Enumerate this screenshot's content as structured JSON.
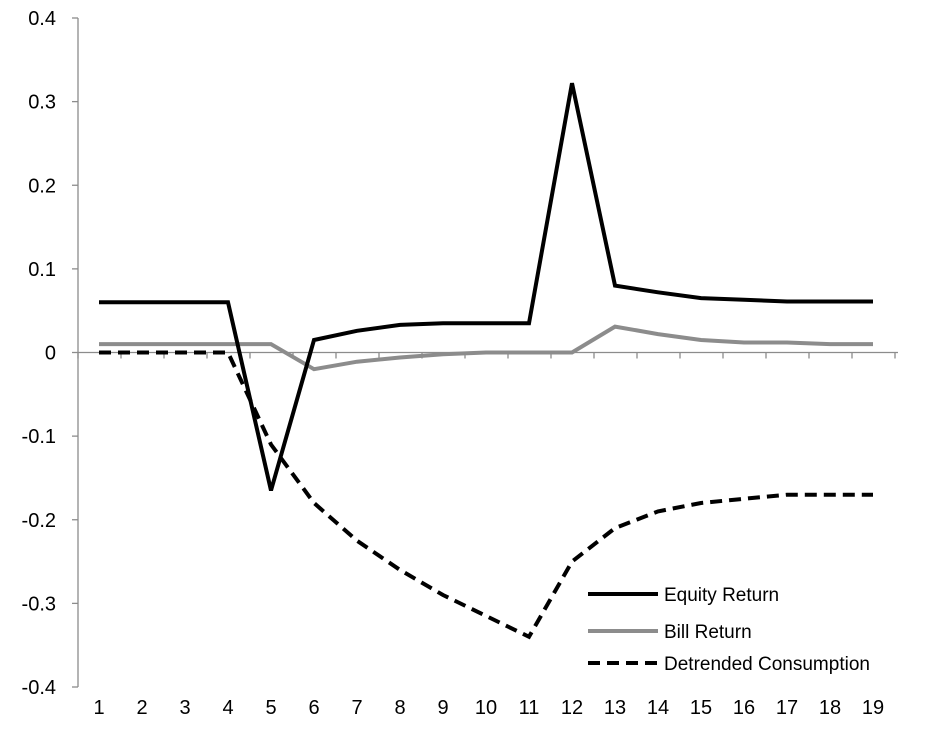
{
  "chart_data": {
    "type": "line",
    "title": "",
    "xlabel": "",
    "ylabel": "",
    "categories": [
      "1",
      "2",
      "3",
      "4",
      "5",
      "6",
      "7",
      "8",
      "9",
      "10",
      "11",
      "12",
      "13",
      "14",
      "15",
      "16",
      "17",
      "18",
      "19"
    ],
    "ylim": [
      -0.4,
      0.4
    ],
    "yticks": [
      "0.4",
      "0.3",
      "0.2",
      "0.1",
      "0",
      "-0.1",
      "-0.2",
      "-0.3",
      "-0.4"
    ],
    "grid": false,
    "legend_position": "bottom-right",
    "series": [
      {
        "name": "Equity Return",
        "color": "#000000",
        "style": "solid",
        "values": [
          0.06,
          0.06,
          0.06,
          0.06,
          -0.165,
          0.015,
          0.026,
          0.033,
          0.035,
          0.035,
          0.035,
          0.322,
          0.08,
          0.072,
          0.065,
          0.063,
          0.061,
          0.061,
          0.061
        ]
      },
      {
        "name": "Bill Return",
        "color": "#8c8c8c",
        "style": "solid",
        "values": [
          0.01,
          0.01,
          0.01,
          0.01,
          0.01,
          -0.02,
          -0.011,
          -0.006,
          -0.002,
          0.0,
          0.0,
          0.0,
          0.031,
          0.022,
          0.015,
          0.012,
          0.012,
          0.01,
          0.01
        ]
      },
      {
        "name": "Detrended Consumption",
        "color": "#000000",
        "style": "dashed",
        "values": [
          0.0,
          0.0,
          0.0,
          0.0,
          -0.11,
          -0.18,
          -0.225,
          -0.26,
          -0.29,
          -0.315,
          -0.34,
          -0.25,
          -0.21,
          -0.19,
          -0.18,
          -0.175,
          -0.17,
          -0.17,
          -0.17
        ]
      }
    ]
  }
}
